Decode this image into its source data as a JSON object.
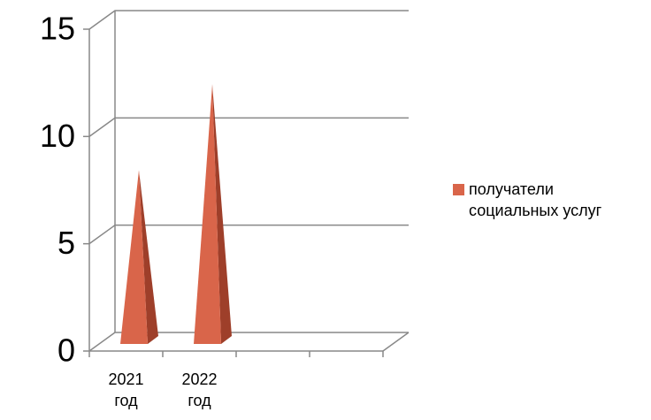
{
  "chart_data": {
    "type": "pyramid3d",
    "categories": [
      "2021 год",
      "2022 год",
      null,
      null
    ],
    "series": [
      {
        "name": "получатели социальных услуг",
        "color": "#d9654a",
        "values": [
          8,
          12,
          null,
          null
        ]
      }
    ],
    "ylim": [
      0,
      15
    ],
    "yticks": [
      0,
      5,
      10,
      15
    ],
    "grid": true,
    "legend": "right"
  }
}
